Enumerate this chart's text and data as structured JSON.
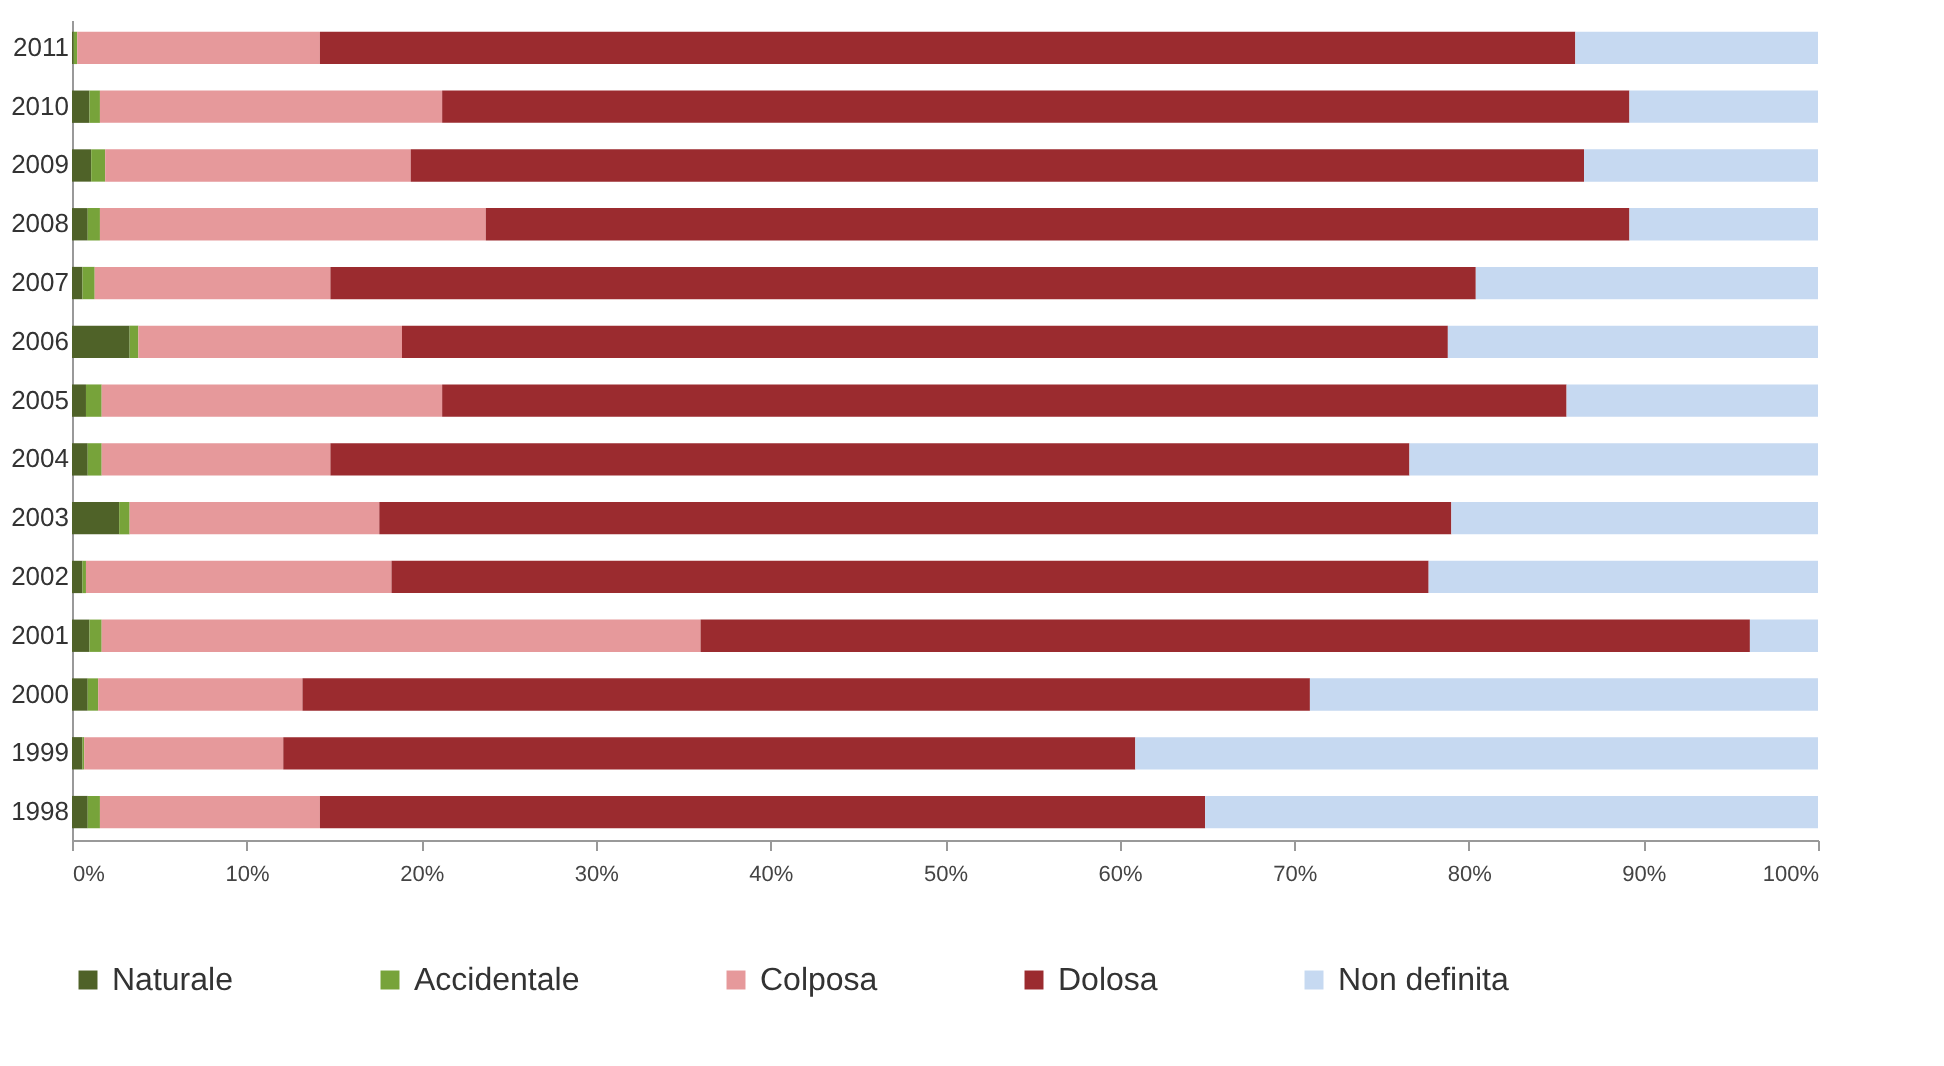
{
  "chart_data": {
    "type": "bar",
    "orientation": "horizontal",
    "stacked": true,
    "categories": [
      "2011",
      "2010",
      "2009",
      "2008",
      "2007",
      "2006",
      "2005",
      "2004",
      "2003",
      "2002",
      "2001",
      "2000",
      "1999",
      "1998"
    ],
    "series": [
      {
        "name": "Naturale",
        "color": "#4f6228",
        "values": [
          0.1,
          1.0,
          1.1,
          0.9,
          0.6,
          3.3,
          0.8,
          0.9,
          2.7,
          0.6,
          1.0,
          0.9,
          0.6,
          0.9
        ]
      },
      {
        "name": "Accidentale",
        "color": "#77a33a",
        "values": [
          0.2,
          0.6,
          0.8,
          0.7,
          0.7,
          0.5,
          0.9,
          0.8,
          0.6,
          0.2,
          0.7,
          0.6,
          0.1,
          0.7
        ]
      },
      {
        "name": "Colposa",
        "color": "#e6999b",
        "values": [
          13.9,
          19.6,
          17.5,
          22.1,
          13.5,
          15.1,
          19.5,
          13.1,
          14.3,
          17.5,
          34.3,
          11.7,
          11.4,
          12.6
        ]
      },
      {
        "name": "Dolosa",
        "color": "#9b2b2f",
        "values": [
          71.9,
          68.0,
          67.2,
          65.5,
          65.6,
          59.9,
          64.4,
          61.8,
          61.4,
          59.4,
          60.1,
          57.7,
          48.8,
          50.7
        ]
      },
      {
        "name": "Non definita",
        "color": "#c6d9f1",
        "values": [
          13.9,
          10.8,
          13.4,
          10.8,
          19.6,
          21.2,
          14.4,
          23.4,
          21.0,
          22.3,
          3.9,
          29.1,
          39.1,
          35.1
        ]
      }
    ],
    "xlim": [
      0,
      100
    ],
    "xticks": [
      {
        "value": 0,
        "label": "0%"
      },
      {
        "value": 10,
        "label": "10%"
      },
      {
        "value": 20,
        "label": "20%"
      },
      {
        "value": 30,
        "label": "30%"
      },
      {
        "value": 40,
        "label": "40%"
      },
      {
        "value": 50,
        "label": "50%"
      },
      {
        "value": 60,
        "label": "60%"
      },
      {
        "value": 70,
        "label": "70%"
      },
      {
        "value": 80,
        "label": "80%"
      },
      {
        "value": 90,
        "label": "90%"
      },
      {
        "value": 100,
        "label": "100%"
      }
    ],
    "grid": false,
    "legend": "bottom"
  }
}
